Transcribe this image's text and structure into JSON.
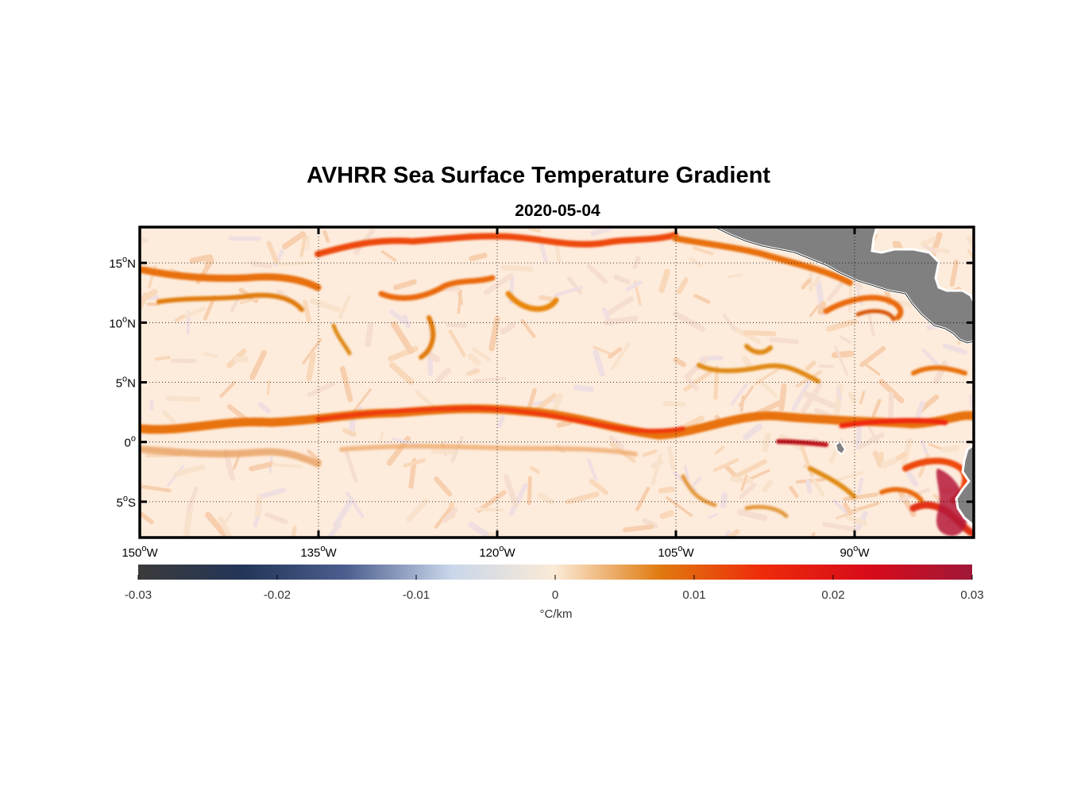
{
  "title": "AVHRR Sea Surface Temperature Gradient",
  "subtitle": "2020-05-04",
  "map": {
    "lon_range": [
      -150,
      -80
    ],
    "lat_range": [
      -8,
      18
    ],
    "lon_ticks": [
      {
        "value": -150,
        "label": "150",
        "suffix": "W"
      },
      {
        "value": -135,
        "label": "135",
        "suffix": "W"
      },
      {
        "value": -120,
        "label": "120",
        "suffix": "W"
      },
      {
        "value": -105,
        "label": "105",
        "suffix": "W"
      },
      {
        "value": -90,
        "label": "90",
        "suffix": "W"
      }
    ],
    "lat_ticks": [
      {
        "value": 15,
        "label": "15",
        "suffix": "N"
      },
      {
        "value": 10,
        "label": "10",
        "suffix": "N"
      },
      {
        "value": 5,
        "label": "5",
        "suffix": "N"
      },
      {
        "value": 0,
        "label": "0",
        "suffix": ""
      },
      {
        "value": -5,
        "label": "5",
        "suffix": "S"
      }
    ],
    "grid": "dotted",
    "land_color": "#808080",
    "background_color": "#fdebdb"
  },
  "colorbar": {
    "range": [
      -0.03,
      0.03
    ],
    "ticks": [
      "-0.03",
      "-0.02",
      "-0.01",
      "0",
      "0.01",
      "0.02",
      "0.03"
    ],
    "label": "°C/km",
    "colors": [
      "#3b3b3b",
      "#233558",
      "#4d5f8f",
      "#c9d6ea",
      "#fbead6",
      "#e07b10",
      "#ee2a0a",
      "#d80b1a",
      "#a01838"
    ]
  },
  "chart_data": {
    "type": "heatmap",
    "title": "AVHRR Sea Surface Temperature Gradient",
    "subtitle": "2020-05-04",
    "xlim": [
      -150,
      -80
    ],
    "ylim": [
      -8,
      18
    ],
    "clim": [
      -0.03,
      0.03
    ],
    "colorbar_label": "°C/km"
  }
}
